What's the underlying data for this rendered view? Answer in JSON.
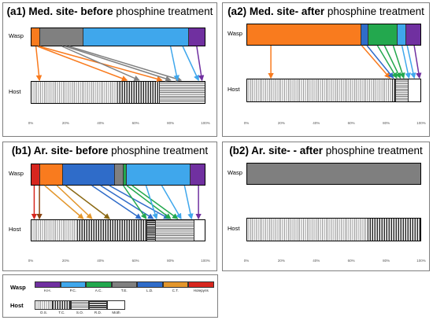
{
  "colors": {
    "H.H.": "#7030a0",
    "P.C.": "#3fa7ec",
    "A.C.": "#23a84e",
    "T.E.": "#808080",
    "L.D.": "#2f6cc9",
    "C.T.": "#e3962b",
    "Holepyris": "#d7261e",
    "orange": "#f97b1e",
    "grey_bar": "#7f7f7f"
  },
  "axis_ticks": [
    "0%",
    "20%",
    "40%",
    "60%",
    "80%",
    "100%"
  ],
  "row_labels": {
    "wasp": "Wasp",
    "host": "Host"
  },
  "panels": [
    {
      "id": "a1",
      "title_bold": "(a1) Med. site- before",
      "title_rest": " phosphine treatment",
      "wasp_segments": [
        {
          "color": "#f97b1e",
          "share": 5
        },
        {
          "color": "#808080",
          "share": 25
        },
        {
          "color": "#3fa7ec",
          "share": 61
        },
        {
          "color": "#7030a0",
          "share": 9
        }
      ],
      "host_segments": [
        {
          "pattern": "pat-os",
          "share": 50
        },
        {
          "pattern": "pat-tc",
          "share": 24
        },
        {
          "pattern": "pat-so",
          "share": 26
        }
      ],
      "links": [
        {
          "from": 0.03,
          "to": 0.05,
          "color": "#f97b1e"
        },
        {
          "from": 0.04,
          "to": 0.55,
          "color": "#f97b1e"
        },
        {
          "from": 0.05,
          "to": 0.75,
          "color": "#f97b1e"
        },
        {
          "from": 0.18,
          "to": 0.62,
          "color": "#808080"
        },
        {
          "from": 0.2,
          "to": 0.8,
          "color": "#808080"
        },
        {
          "from": 0.22,
          "to": 0.86,
          "color": "#808080"
        },
        {
          "from": 0.8,
          "to": 0.84,
          "color": "#3fa7ec"
        },
        {
          "from": 0.87,
          "to": 0.96,
          "color": "#3fa7ec"
        },
        {
          "from": 0.95,
          "to": 0.98,
          "color": "#7030a0"
        }
      ]
    },
    {
      "id": "a2",
      "title_bold": "(a2) Med. site- after",
      "title_rest": " phosphine treatment",
      "wasp_segments": [
        {
          "color": "#f97b1e",
          "share": 66
        },
        {
          "color": "#2f6cc9",
          "share": 4
        },
        {
          "color": "#23a84e",
          "share": 17
        },
        {
          "color": "#3fa7ec",
          "share": 5
        },
        {
          "color": "#7030a0",
          "share": 8
        }
      ],
      "host_segments": [
        {
          "pattern": "pat-os",
          "share": 84
        },
        {
          "pattern": "pat-tc",
          "share": 2
        },
        {
          "pattern": "pat-so",
          "share": 7
        },
        {
          "pattern": "pat-moth",
          "share": 7
        }
      ],
      "links": [
        {
          "from": 0.14,
          "to": 0.14,
          "color": "#f97b1e"
        },
        {
          "from": 0.66,
          "to": 0.82,
          "color": "#f97b1e"
        },
        {
          "from": 0.69,
          "to": 0.84,
          "color": "#2f6cc9"
        },
        {
          "from": 0.75,
          "to": 0.86,
          "color": "#23a84e"
        },
        {
          "from": 0.79,
          "to": 0.88,
          "color": "#23a84e"
        },
        {
          "from": 0.84,
          "to": 0.9,
          "color": "#23a84e"
        },
        {
          "from": 0.89,
          "to": 0.93,
          "color": "#3fa7ec"
        },
        {
          "from": 0.92,
          "to": 0.96,
          "color": "#3fa7ec"
        },
        {
          "from": 0.96,
          "to": 0.99,
          "color": "#7030a0"
        }
      ]
    },
    {
      "id": "b1",
      "title_bold": "(b1) Ar. site- before",
      "title_rest": " phosphine treatment",
      "wasp_segments": [
        {
          "color": "#d7261e",
          "share": 5
        },
        {
          "color": "#f97b1e",
          "share": 13
        },
        {
          "color": "#2f6cc9",
          "share": 30
        },
        {
          "color": "#808080",
          "share": 5
        },
        {
          "color": "#23a84e",
          "share": 2
        },
        {
          "color": "#3fa7ec",
          "share": 37
        },
        {
          "color": "#7030a0",
          "share": 8
        }
      ],
      "host_segments": [
        {
          "pattern": "pat-os",
          "share": 27
        },
        {
          "pattern": "pat-tc",
          "share": 40
        },
        {
          "pattern": "pat-rd",
          "share": 5
        },
        {
          "pattern": "pat-so",
          "share": 22
        },
        {
          "pattern": "pat-moth",
          "share": 6
        }
      ],
      "links": [
        {
          "from": 0.02,
          "to": 0.02,
          "color": "#d7261e"
        },
        {
          "from": 0.05,
          "to": 0.05,
          "color": "#8b4513"
        },
        {
          "from": 0.08,
          "to": 0.3,
          "color": "#e3962b"
        },
        {
          "from": 0.15,
          "to": 0.35,
          "color": "#e3962b"
        },
        {
          "from": 0.2,
          "to": 0.45,
          "color": "#8b6914"
        },
        {
          "from": 0.35,
          "to": 0.63,
          "color": "#2f6cc9"
        },
        {
          "from": 0.4,
          "to": 0.7,
          "color": "#2f6cc9"
        },
        {
          "from": 0.45,
          "to": 0.79,
          "color": "#2f6cc9"
        },
        {
          "from": 0.53,
          "to": 0.66,
          "color": "#23a84e"
        },
        {
          "from": 0.55,
          "to": 0.8,
          "color": "#23a84e"
        },
        {
          "from": 0.58,
          "to": 0.84,
          "color": "#23a84e"
        },
        {
          "from": 0.66,
          "to": 0.72,
          "color": "#3fa7ec"
        },
        {
          "from": 0.75,
          "to": 0.86,
          "color": "#3fa7ec"
        },
        {
          "from": 0.88,
          "to": 0.92,
          "color": "#3fa7ec"
        },
        {
          "from": 0.96,
          "to": 0.96,
          "color": "#7030a0"
        }
      ]
    },
    {
      "id": "b2",
      "title_bold": "(b2) Ar. site- - after",
      "title_rest": " phosphine treatment",
      "wasp_segments": [
        {
          "color": "#7f7f7f",
          "share": 100
        }
      ],
      "host_segments": [
        {
          "pattern": "pat-os",
          "share": 70
        },
        {
          "pattern": "pat-tc",
          "share": 30
        }
      ],
      "links": []
    }
  ],
  "legend": {
    "wasp_label": "Wasp",
    "host_label": "Host",
    "wasp_items": [
      {
        "label": "H.H.",
        "color": "#7030a0"
      },
      {
        "label": "P.C.",
        "color": "#3fa7ec"
      },
      {
        "label": "A.C.",
        "color": "#23a84e"
      },
      {
        "label": "T.E.",
        "color": "#808080"
      },
      {
        "label": "L.D.",
        "color": "#2f6cc9"
      },
      {
        "label": "C.T.",
        "color": "#e3962b"
      },
      {
        "label": "Holepyris",
        "color": "#d7261e"
      }
    ],
    "host_items": [
      {
        "label": "O.S.",
        "pattern": "pat-os"
      },
      {
        "label": "T.C.",
        "pattern": "pat-tc"
      },
      {
        "label": "S.O.",
        "pattern": "pat-so"
      },
      {
        "label": "R.D.",
        "pattern": "pat-rd"
      },
      {
        "label": "Moth",
        "pattern": "pat-moth"
      }
    ]
  },
  "chart_data": [
    {
      "type": "bar",
      "title": "(a1) Med. site- before phosphine treatment",
      "orientation": "horizontal-stacked-100%",
      "categories": [
        "Wasp",
        "Host"
      ],
      "series_wasp_percent": {
        "C.T.": 5,
        "T.E.": 25,
        "P.C.": 61,
        "H.H.": 9
      },
      "series_host_percent": {
        "O.S.": 50,
        "T.C.": 24,
        "S.O.": 26
      },
      "xlim": [
        0,
        100
      ]
    },
    {
      "type": "bar",
      "title": "(a2) Med. site- after phosphine treatment",
      "orientation": "horizontal-stacked-100%",
      "categories": [
        "Wasp",
        "Host"
      ],
      "series_wasp_percent": {
        "C.T.": 66,
        "L.D.": 4,
        "A.C.": 17,
        "P.C.": 5,
        "H.H.": 8
      },
      "series_host_percent": {
        "O.S.": 84,
        "T.C.": 2,
        "S.O.": 7,
        "Moth": 7
      },
      "xlim": [
        0,
        100
      ]
    },
    {
      "type": "bar",
      "title": "(b1) Ar. site- before phosphine treatment",
      "orientation": "horizontal-stacked-100%",
      "categories": [
        "Wasp",
        "Host"
      ],
      "series_wasp_percent": {
        "Holepyris": 5,
        "C.T.": 13,
        "L.D.": 30,
        "T.E.": 5,
        "A.C.": 2,
        "P.C.": 37,
        "H.H.": 8
      },
      "series_host_percent": {
        "O.S.": 27,
        "T.C.": 40,
        "R.D.": 5,
        "S.O.": 22,
        "Moth": 6
      },
      "xlim": [
        0,
        100
      ]
    },
    {
      "type": "bar",
      "title": "(b2) Ar. site- - after phosphine treatment",
      "orientation": "horizontal-stacked-100%",
      "categories": [
        "Wasp",
        "Host"
      ],
      "series_wasp_percent": {
        "T.E.": 100
      },
      "series_host_percent": {
        "O.S.": 70,
        "T.C.": 30
      },
      "xlim": [
        0,
        100
      ]
    }
  ]
}
